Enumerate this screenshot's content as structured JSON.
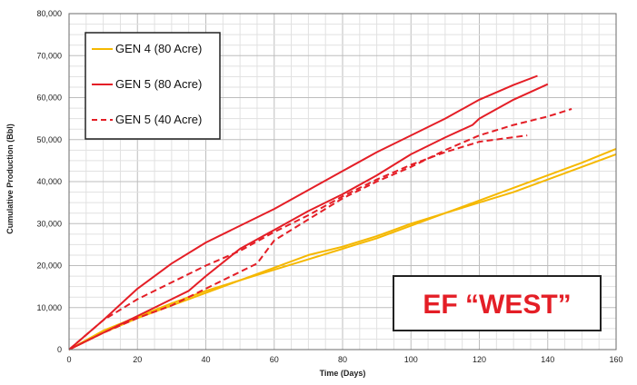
{
  "chart_data": {
    "type": "line",
    "xlabel": "Time (Days)",
    "ylabel": "Cumulative Production (Bbl)",
    "xlim": [
      0,
      160
    ],
    "ylim": [
      0,
      80000
    ],
    "x_ticks": [
      "0",
      "20",
      "40",
      "60",
      "80",
      "100",
      "120",
      "140",
      "160"
    ],
    "y_ticks": [
      "0",
      "10,000",
      "20,000",
      "30,000",
      "40,000",
      "50,000",
      "60,000",
      "70,000",
      "80,000"
    ],
    "x_tick_values": [
      0,
      20,
      40,
      60,
      80,
      100,
      120,
      140,
      160
    ],
    "y_tick_values": [
      0,
      10000,
      20000,
      30000,
      40000,
      50000,
      60000,
      70000,
      80000
    ],
    "grid": true,
    "legend_position": "top-left",
    "legend": [
      {
        "name": "GEN 4 (80 Acre)",
        "color": "#f5b800",
        "dash": "solid"
      },
      {
        "name": "GEN 5 (80 Acre)",
        "color": "#e41e26",
        "dash": "solid"
      },
      {
        "name": "GEN 5 (40 Acre)",
        "color": "#e41e26",
        "dash": "dashed"
      }
    ],
    "series": [
      {
        "group": "GEN 4 (80 Acre)",
        "color": "#f5b800",
        "dash": "solid",
        "points": [
          [
            0,
            0
          ],
          [
            10,
            4500
          ],
          [
            20,
            7800
          ],
          [
            30,
            11000
          ],
          [
            40,
            14000
          ],
          [
            50,
            16500
          ],
          [
            60,
            19000
          ],
          [
            70,
            21500
          ],
          [
            80,
            24000
          ],
          [
            90,
            26500
          ],
          [
            100,
            29500
          ],
          [
            110,
            32500
          ],
          [
            120,
            35500
          ],
          [
            130,
            38500
          ],
          [
            140,
            41500
          ],
          [
            150,
            44500
          ],
          [
            160,
            47800
          ]
        ]
      },
      {
        "group": "GEN 4 (80 Acre)",
        "color": "#f5b800",
        "dash": "solid",
        "points": [
          [
            0,
            0
          ],
          [
            10,
            4000
          ],
          [
            20,
            7500
          ],
          [
            30,
            10500
          ],
          [
            40,
            13500
          ],
          [
            50,
            16500
          ],
          [
            60,
            19500
          ],
          [
            70,
            22500
          ],
          [
            80,
            24500
          ],
          [
            90,
            27000
          ],
          [
            100,
            30000
          ],
          [
            110,
            32500
          ],
          [
            120,
            35000
          ],
          [
            130,
            37500
          ],
          [
            140,
            40500
          ],
          [
            150,
            43500
          ],
          [
            160,
            46500
          ]
        ]
      },
      {
        "group": "GEN 5 (80 Acre)",
        "color": "#e41e26",
        "dash": "solid",
        "points": [
          [
            0,
            0
          ],
          [
            10,
            7000
          ],
          [
            20,
            14500
          ],
          [
            30,
            20500
          ],
          [
            40,
            25500
          ],
          [
            50,
            29500
          ],
          [
            60,
            33500
          ],
          [
            70,
            38000
          ],
          [
            80,
            42500
          ],
          [
            90,
            47000
          ],
          [
            100,
            51000
          ],
          [
            110,
            55000
          ],
          [
            120,
            59500
          ],
          [
            130,
            63000
          ],
          [
            137,
            65200
          ]
        ]
      },
      {
        "group": "GEN 5 (80 Acre)",
        "color": "#e41e26",
        "dash": "solid",
        "points": [
          [
            0,
            0
          ],
          [
            10,
            4000
          ],
          [
            20,
            8000
          ],
          [
            30,
            12000
          ],
          [
            35,
            14000
          ],
          [
            40,
            17500
          ],
          [
            50,
            24000
          ],
          [
            60,
            28500
          ],
          [
            70,
            33000
          ],
          [
            80,
            37000
          ],
          [
            90,
            41500
          ],
          [
            100,
            46500
          ],
          [
            110,
            50500
          ],
          [
            118,
            53500
          ],
          [
            120,
            55000
          ],
          [
            130,
            59500
          ],
          [
            140,
            63200
          ]
        ]
      },
      {
        "group": "GEN 5 (40 Acre)",
        "color": "#e41e26",
        "dash": "dashed",
        "points": [
          [
            0,
            0
          ],
          [
            10,
            7000
          ],
          [
            20,
            12000
          ],
          [
            30,
            16000
          ],
          [
            40,
            20000
          ],
          [
            50,
            23500
          ],
          [
            60,
            28000
          ],
          [
            70,
            32000
          ],
          [
            80,
            36500
          ],
          [
            90,
            40500
          ],
          [
            100,
            44000
          ],
          [
            110,
            47000
          ],
          [
            120,
            49500
          ],
          [
            134,
            51000
          ]
        ]
      },
      {
        "group": "GEN 5 (40 Acre)",
        "color": "#e41e26",
        "dash": "dashed",
        "points": [
          [
            0,
            0
          ],
          [
            10,
            4000
          ],
          [
            20,
            7500
          ],
          [
            30,
            10500
          ],
          [
            40,
            14500
          ],
          [
            50,
            18500
          ],
          [
            55,
            20500
          ],
          [
            60,
            26000
          ],
          [
            70,
            31000
          ],
          [
            80,
            36000
          ],
          [
            90,
            40000
          ],
          [
            100,
            43500
          ],
          [
            110,
            47500
          ],
          [
            120,
            51000
          ],
          [
            130,
            53500
          ],
          [
            140,
            55500
          ],
          [
            147,
            57300
          ]
        ]
      }
    ],
    "annotations": [
      {
        "text": "EF “WEST”"
      }
    ]
  }
}
